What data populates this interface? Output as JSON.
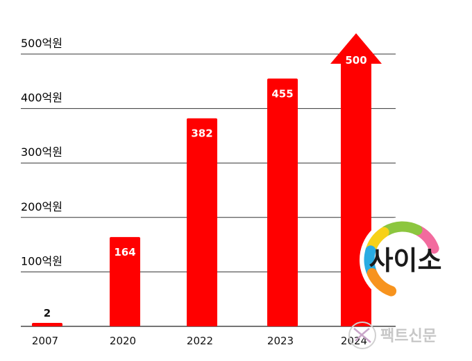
{
  "chart_data": {
    "type": "bar",
    "categories": [
      "2007",
      "2020",
      "2022",
      "2023",
      "2024"
    ],
    "values": [
      2,
      164,
      382,
      455,
      500
    ],
    "value_labels": [
      "2",
      "164",
      "382",
      "455",
      "500"
    ],
    "y_tick_values": [
      100,
      200,
      300,
      400,
      500
    ],
    "y_tick_labels": [
      "100억원",
      "200억원",
      "300억원",
      "400억원",
      "500억원"
    ],
    "ylim": [
      0,
      500
    ],
    "grid": true,
    "last_bar_style": "arrow",
    "bar_color": "#ff0000",
    "title": "",
    "xlabel": "",
    "ylabel": ""
  },
  "logo": {
    "text": "사이소",
    "colors": [
      "#f26b9e",
      "#8cc63f",
      "#f7d117",
      "#29abe2",
      "#f7931e"
    ]
  },
  "watermark": {
    "text": "팩트신문"
  }
}
